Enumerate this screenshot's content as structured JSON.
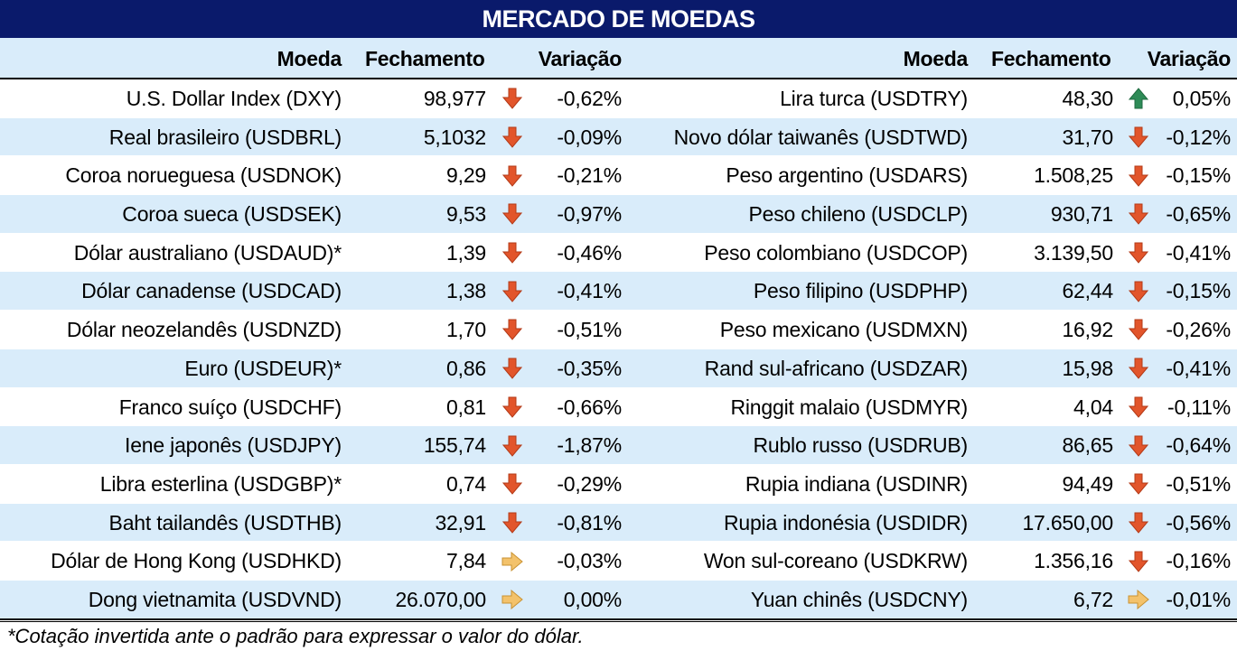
{
  "title": "MERCADO DE MOEDAS",
  "headers": {
    "moeda": "Moeda",
    "fechamento": "Fechamento",
    "variacao": "Variação"
  },
  "left": [
    {
      "moeda": "U.S. Dollar Index (DXY)",
      "fechamento": "98,977",
      "trend": "down",
      "variacao": "-0,62%"
    },
    {
      "moeda": "Real brasileiro (USDBRL)",
      "fechamento": "5,1032",
      "trend": "down",
      "variacao": "-0,09%"
    },
    {
      "moeda": "Coroa norueguesa (USDNOK)",
      "fechamento": "9,29",
      "trend": "down",
      "variacao": "-0,21%"
    },
    {
      "moeda": "Coroa sueca (USDSEK)",
      "fechamento": "9,53",
      "trend": "down",
      "variacao": "-0,97%"
    },
    {
      "moeda": "Dólar australiano (USDAUD)*",
      "fechamento": "1,39",
      "trend": "down",
      "variacao": "-0,46%"
    },
    {
      "moeda": "Dólar canadense (USDCAD)",
      "fechamento": "1,38",
      "trend": "down",
      "variacao": "-0,41%"
    },
    {
      "moeda": "Dólar neozelandês (USDNZD)",
      "fechamento": "1,70",
      "trend": "down",
      "variacao": "-0,51%"
    },
    {
      "moeda": "Euro (USDEUR)*",
      "fechamento": "0,86",
      "trend": "down",
      "variacao": "-0,35%"
    },
    {
      "moeda": "Franco suíço (USDCHF)",
      "fechamento": "0,81",
      "trend": "down",
      "variacao": "-0,66%"
    },
    {
      "moeda": "Iene japonês (USDJPY)",
      "fechamento": "155,74",
      "trend": "down",
      "variacao": "-1,87%"
    },
    {
      "moeda": "Libra esterlina (USDGBP)*",
      "fechamento": "0,74",
      "trend": "down",
      "variacao": "-0,29%"
    },
    {
      "moeda": "Baht tailandês (USDTHB)",
      "fechamento": "32,91",
      "trend": "down",
      "variacao": "-0,81%"
    },
    {
      "moeda": "Dólar de Hong Kong (USDHKD)",
      "fechamento": "7,84",
      "trend": "flat",
      "variacao": "-0,03%"
    },
    {
      "moeda": "Dong vietnamita (USDVND)",
      "fechamento": "26.070,00",
      "trend": "flat",
      "variacao": "0,00%"
    }
  ],
  "right": [
    {
      "moeda": "Lira turca (USDTRY)",
      "fechamento": "48,30",
      "trend": "up",
      "variacao": "0,05%"
    },
    {
      "moeda": "Novo dólar taiwanês (USDTWD)",
      "fechamento": "31,70",
      "trend": "down",
      "variacao": "-0,12%"
    },
    {
      "moeda": "Peso argentino (USDARS)",
      "fechamento": "1.508,25",
      "trend": "down",
      "variacao": "-0,15%"
    },
    {
      "moeda": "Peso chileno (USDCLP)",
      "fechamento": "930,71",
      "trend": "down",
      "variacao": "-0,65%"
    },
    {
      "moeda": "Peso colombiano (USDCOP)",
      "fechamento": "3.139,50",
      "trend": "down",
      "variacao": "-0,41%"
    },
    {
      "moeda": "Peso filipino (USDPHP)",
      "fechamento": "62,44",
      "trend": "down",
      "variacao": "-0,15%"
    },
    {
      "moeda": "Peso mexicano (USDMXN)",
      "fechamento": "16,92",
      "trend": "down",
      "variacao": "-0,26%"
    },
    {
      "moeda": "Rand sul-africano (USDZAR)",
      "fechamento": "15,98",
      "trend": "down",
      "variacao": "-0,41%"
    },
    {
      "moeda": "Ringgit malaio (USDMYR)",
      "fechamento": "4,04",
      "trend": "down",
      "variacao": "-0,11%"
    },
    {
      "moeda": "Rublo russo (USDRUB)",
      "fechamento": "86,65",
      "trend": "down",
      "variacao": "-0,64%"
    },
    {
      "moeda": "Rupia indiana (USDINR)",
      "fechamento": "94,49",
      "trend": "down",
      "variacao": "-0,51%"
    },
    {
      "moeda": "Rupia indonésia (USDIDR)",
      "fechamento": "17.650,00",
      "trend": "down",
      "variacao": "-0,56%"
    },
    {
      "moeda": "Won sul-coreano (USDKRW)",
      "fechamento": "1.356,16",
      "trend": "down",
      "variacao": "-0,16%"
    },
    {
      "moeda": "Yuan chinês (USDCNY)",
      "fechamento": "6,72",
      "trend": "flat",
      "variacao": "-0,01%"
    }
  ],
  "icons": {
    "down": "arrow-down-icon",
    "up": "arrow-up-icon",
    "flat": "arrow-right-icon"
  },
  "colors": {
    "title_bg": "#0a1a6b",
    "band": "#d9ecfa",
    "down": "#e2552b",
    "up": "#2e8b57",
    "flat": "#f3c26b"
  },
  "footnote": "*Cotação invertida ante o padrão para expressar o valor do dólar."
}
